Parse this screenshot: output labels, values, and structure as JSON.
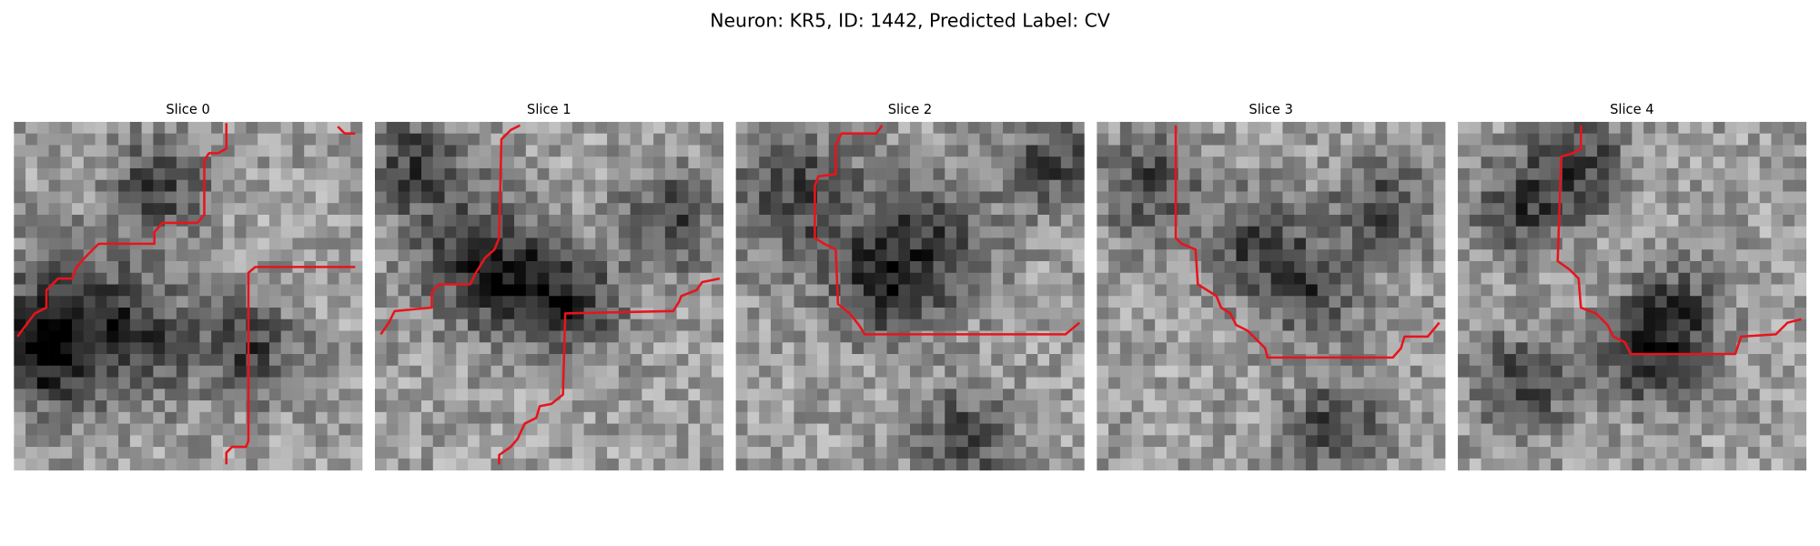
{
  "title": "Neuron: KR5, ID: 1442, Predicted Label: CV",
  "panels": [
    {
      "label": "Slice 0"
    },
    {
      "label": "Slice 1"
    },
    {
      "label": "Slice 2"
    },
    {
      "label": "Slice 3"
    },
    {
      "label": "Slice 4"
    }
  ]
}
